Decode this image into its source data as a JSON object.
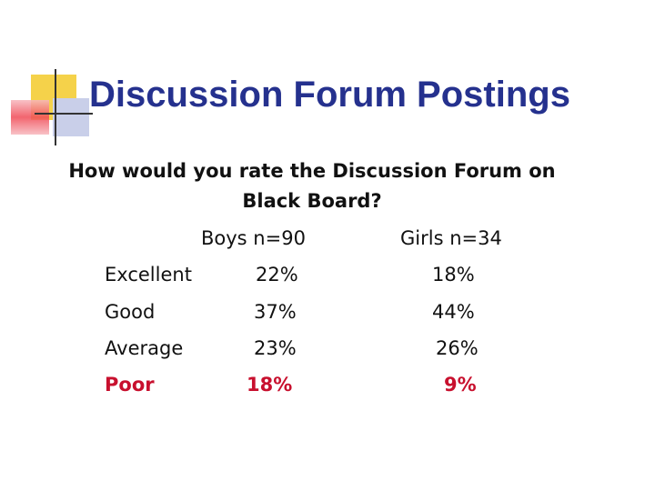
{
  "slide": {
    "title": "Discussion Forum Postings",
    "question_line1": "How would you rate the Discussion Forum on",
    "question_line2": "Black Board?",
    "accent_color": "#25318e",
    "highlight_color": "#c8102e"
  },
  "table": {
    "headers": {
      "boys": "Boys n=90",
      "girls": "Girls n=34"
    },
    "rows": [
      {
        "label": "Excellent",
        "boys": "22%",
        "girls": "18%"
      },
      {
        "label": "Good",
        "boys": "37%",
        "girls": "44%"
      },
      {
        "label": "Average",
        "boys": "23%",
        "girls": "26%"
      },
      {
        "label": "Poor",
        "boys": "18%",
        "girls": "9%"
      }
    ]
  }
}
